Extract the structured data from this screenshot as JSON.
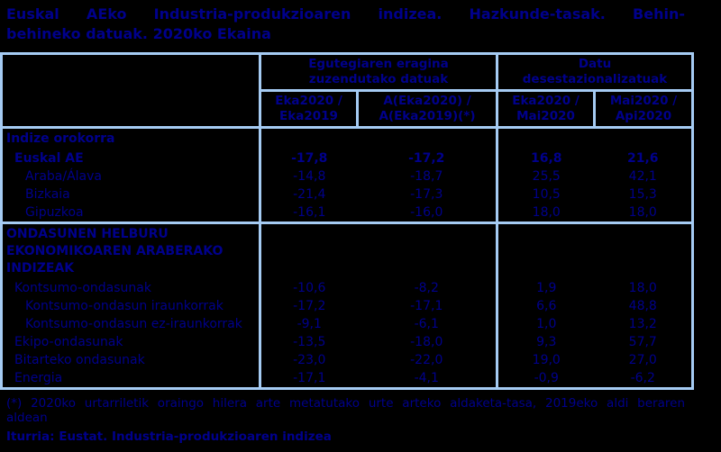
{
  "title": {
    "line1": "Euskal AEko Industria-produkzioaren indizea. Hazkunde-tasak. Behin-",
    "line2": "behineko datuak. 2020ko Ekaina"
  },
  "table": {
    "groups": [
      "Egutegiaren eragina zuzendutako datuak",
      "Datu desestazionalizatuak"
    ],
    "columns": [
      "Eka2020 / Eka2019",
      "A(Eka2020) / A(Eka2019)(*)",
      "Eka2020 / Mai2020",
      "Mai2020 / Api2020"
    ],
    "sections": [
      {
        "title": "Indize orokorra",
        "rows": [
          {
            "label": "Euskal AE",
            "indent": 1,
            "bold": true,
            "values": [
              "-17,8",
              "-17,2",
              "16,8",
              "21,6"
            ]
          },
          {
            "label": "Araba/Álava",
            "indent": 2,
            "bold": false,
            "values": [
              "-14,8",
              "-18,7",
              "25,5",
              "42,1"
            ]
          },
          {
            "label": "Bizkaia",
            "indent": 2,
            "bold": false,
            "values": [
              "-21,4",
              "-17,3",
              "10,5",
              "15,3"
            ]
          },
          {
            "label": "Gipuzkoa",
            "indent": 2,
            "bold": false,
            "values": [
              "-16,1",
              "-16,0",
              "18,0",
              "18,0"
            ]
          }
        ]
      },
      {
        "title": "ONDASUNEN HELBURU EKONOMIKOAREN ARABERAKO INDIZEAK",
        "rows": [
          {
            "label": "Kontsumo-ondasunak",
            "indent": 1,
            "bold": false,
            "values": [
              "-10,6",
              "-8,2",
              "1,9",
              "18,0"
            ]
          },
          {
            "label": "Kontsumo-ondasun iraunkorrak",
            "indent": 2,
            "bold": false,
            "values": [
              "-17,2",
              "-17,1",
              "6,6",
              "48,8"
            ]
          },
          {
            "label": "Kontsumo-ondasun ez-iraunkorrak",
            "indent": 2,
            "bold": false,
            "values": [
              "-9,1",
              "-6,1",
              "1,0",
              "13,2"
            ]
          },
          {
            "label": "Ekipo-ondasunak",
            "indent": 1,
            "bold": false,
            "values": [
              "-13,5",
              "-18,0",
              "9,3",
              "57,7"
            ]
          },
          {
            "label": "Bitarteko ondasunak",
            "indent": 1,
            "bold": false,
            "values": [
              "-23,0",
              "-22,0",
              "19,0",
              "27,0"
            ]
          },
          {
            "label": "Energia",
            "indent": 1,
            "bold": false,
            "values": [
              "-17,1",
              "-4,1",
              "-0,9",
              "-6,2"
            ]
          }
        ]
      }
    ]
  },
  "footnote": {
    "line1": "(*) 2020ko urtarriletik oraingo hilera arte metatutako urte arteko aldaketa-tasa, 2019eko aldi beraren",
    "line2": "aldean"
  },
  "source": "Iturria: Eustat. Industria-produkzioaren indizea",
  "colors": {
    "background": "#000000",
    "text": "#00008B",
    "border": "#A5CBF3"
  }
}
